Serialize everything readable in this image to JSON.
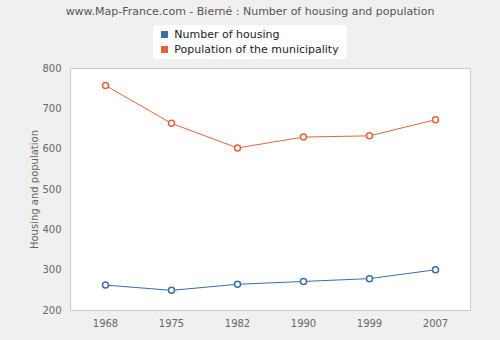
{
  "chart_data": {
    "type": "line",
    "title": "www.Map-France.com - Bierné : Number of housing and population",
    "y_label": "Housing and population",
    "categories": [
      "1968",
      "1975",
      "1982",
      "1990",
      "1999",
      "2007"
    ],
    "series": [
      {
        "name": "Number of housing",
        "color": "#3a6ea5",
        "marker": "circle",
        "values": [
          263,
          250,
          265,
          272,
          279,
          301
        ]
      },
      {
        "name": "Population of the municipality",
        "color": "#e0643a",
        "marker": "circle",
        "values": [
          758,
          664,
          603,
          630,
          633,
          673
        ]
      }
    ],
    "ylim": [
      200,
      800
    ],
    "yticks": [
      200,
      300,
      400,
      500,
      600,
      700,
      800
    ],
    "grid": true,
    "legend": "top"
  }
}
